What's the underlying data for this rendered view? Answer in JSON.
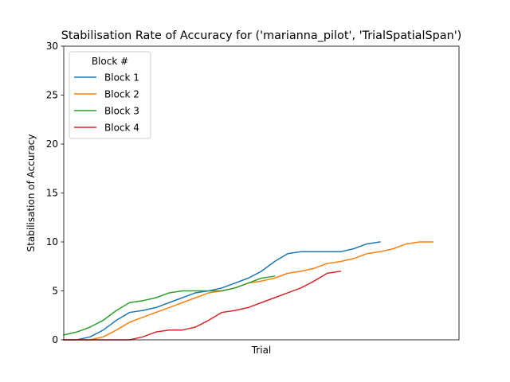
{
  "chart_data": {
    "type": "line",
    "title": "Stabilisation Rate of Accuracy for ('marianna_pilot', 'TrialSpatialSpan')",
    "xlabel": "Trial",
    "ylabel": "Stabilisation of Accuracy",
    "xlim": [
      0,
      30
    ],
    "ylim": [
      0,
      30
    ],
    "yticks": [
      0,
      5,
      10,
      15,
      20,
      25,
      30
    ],
    "grid": false,
    "legend": {
      "title": "Block #",
      "position": "upper-left"
    },
    "series": [
      {
        "name": "Block 1",
        "color": "#1f77b4",
        "x": [
          0,
          1,
          2,
          3,
          4,
          5,
          6,
          7,
          8,
          9,
          10,
          11,
          12,
          13,
          14,
          15,
          16,
          17,
          18,
          19,
          20,
          21,
          22,
          23,
          24
        ],
        "y": [
          0,
          0,
          0.3,
          1,
          2,
          2.8,
          3,
          3.3,
          3.8,
          4.3,
          4.8,
          5,
          5.3,
          5.8,
          6.3,
          7,
          8,
          8.8,
          9,
          9,
          9,
          9,
          9.3,
          9.8,
          10
        ]
      },
      {
        "name": "Block 2",
        "color": "#ff7f0e",
        "x": [
          0,
          1,
          2,
          3,
          4,
          5,
          6,
          7,
          8,
          9,
          10,
          11,
          12,
          13,
          14,
          15,
          16,
          17,
          18,
          19,
          20,
          21,
          22,
          23,
          24,
          25,
          26,
          27,
          28
        ],
        "y": [
          0,
          0,
          0,
          0.3,
          1,
          1.8,
          2.3,
          2.8,
          3.3,
          3.8,
          4.3,
          4.8,
          5,
          5.3,
          5.8,
          6,
          6.3,
          6.8,
          7,
          7.3,
          7.8,
          8,
          8.3,
          8.8,
          9,
          9.3,
          9.8,
          10,
          10
        ]
      },
      {
        "name": "Block 3",
        "color": "#2ca02c",
        "x": [
          0,
          1,
          2,
          3,
          4,
          5,
          6,
          7,
          8,
          9,
          10,
          11,
          12,
          13,
          14,
          15,
          16
        ],
        "y": [
          0.5,
          0.8,
          1.3,
          2,
          3,
          3.8,
          4,
          4.3,
          4.8,
          5,
          5,
          5,
          5,
          5.3,
          5.8,
          6.3,
          6.5
        ]
      },
      {
        "name": "Block 4",
        "color": "#d62728",
        "x": [
          0,
          1,
          2,
          3,
          4,
          5,
          6,
          7,
          8,
          9,
          10,
          11,
          12,
          13,
          14,
          15,
          16,
          17,
          18,
          19,
          20,
          21
        ],
        "y": [
          0,
          0,
          0,
          0,
          0,
          0,
          0.3,
          0.8,
          1,
          1,
          1.3,
          2,
          2.8,
          3,
          3.3,
          3.8,
          4.3,
          4.8,
          5.3,
          6,
          6.8,
          7
        ]
      }
    ]
  }
}
